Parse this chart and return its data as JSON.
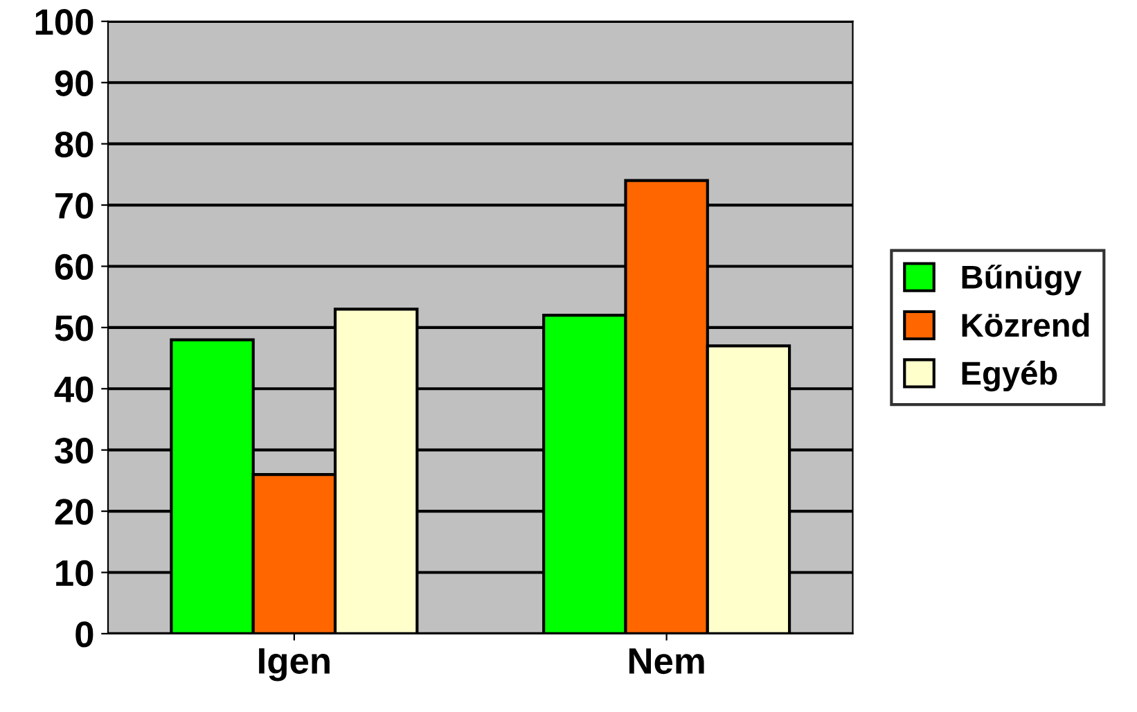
{
  "chart_data": {
    "type": "bar",
    "categories": [
      "Igen",
      "Nem"
    ],
    "series": [
      {
        "name": "Bűnügy",
        "color": "#00ff00",
        "values": [
          48,
          52
        ]
      },
      {
        "name": "Közrend",
        "color": "#ff6600",
        "values": [
          26,
          74
        ]
      },
      {
        "name": "Egyéb",
        "color": "#ffffcc",
        "values": [
          53,
          47
        ]
      }
    ],
    "ylim": [
      0,
      100
    ],
    "yticks": [
      0,
      10,
      20,
      30,
      40,
      50,
      60,
      70,
      80,
      90,
      100
    ],
    "grid": "y",
    "legend": "right"
  }
}
